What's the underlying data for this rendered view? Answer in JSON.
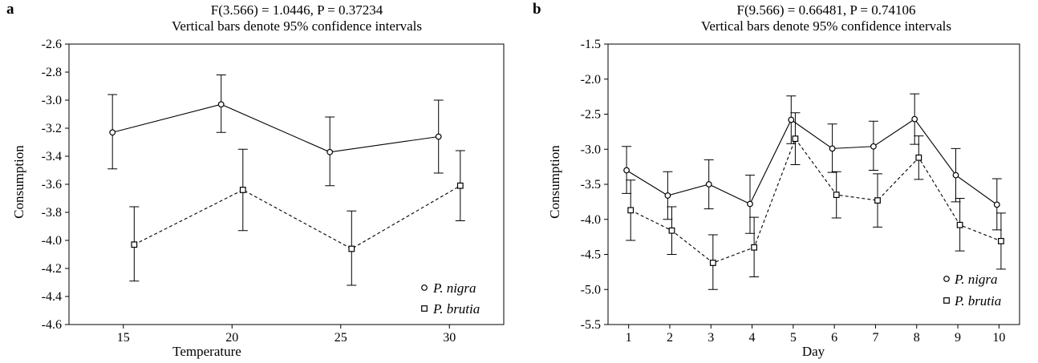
{
  "chart_data": [
    {
      "type": "line",
      "panel_label": "a",
      "title": "F(3.566) = 1.0446,   P = 0.37234",
      "subtitle": "Vertical bars denote 95% confidence intervals",
      "xlabel": "Temperature",
      "ylabel": "Consumption",
      "x_ticks": [
        "15",
        "20",
        "25",
        "30"
      ],
      "xlim": [
        12.5,
        32.5
      ],
      "y_ticks": [
        "-2.6",
        "-2.8",
        "-3.0",
        "-3.2",
        "-3.4",
        "-3.6",
        "-3.8",
        "-4.0",
        "-4.2",
        "-4.4",
        "-4.6"
      ],
      "ylim": [
        -4.6,
        -2.6
      ],
      "grid": false,
      "legend_position": "bottom-right",
      "series": [
        {
          "name": "P. nigra",
          "marker": "circle",
          "line": "solid",
          "x": [
            14.5,
            19.5,
            24.5,
            29.5
          ],
          "values": [
            -3.23,
            -3.03,
            -3.37,
            -3.26
          ],
          "ci_upper": [
            -2.96,
            -2.82,
            -3.12,
            -3.0
          ],
          "ci_lower": [
            -3.49,
            -3.23,
            -3.61,
            -3.52
          ]
        },
        {
          "name": "P. brutia",
          "marker": "square",
          "line": "dashed",
          "x": [
            15.5,
            20.5,
            25.5,
            30.5
          ],
          "values": [
            -4.03,
            -3.64,
            -4.06,
            -3.61
          ],
          "ci_upper": [
            -3.76,
            -3.35,
            -3.79,
            -3.36
          ],
          "ci_lower": [
            -4.29,
            -3.93,
            -4.32,
            -3.86
          ]
        }
      ]
    },
    {
      "type": "line",
      "panel_label": "b",
      "title": "F(9.566) = 0.66481, P = 0.74106",
      "subtitle": "Vertical bars denote 95% confidence intervals",
      "xlabel": "Day",
      "ylabel": "Consumption",
      "x_ticks": [
        "1",
        "2",
        "3",
        "4",
        "5",
        "6",
        "7",
        "8",
        "9",
        "10"
      ],
      "xlim": [
        0.5,
        10.5
      ],
      "y_ticks": [
        "-1.5",
        "-2.0",
        "-2.5",
        "-3.0",
        "-3.5",
        "-4.0",
        "-4.5",
        "-5.0",
        "-5.5"
      ],
      "ylim": [
        -5.5,
        -1.5
      ],
      "grid": false,
      "legend_position": "bottom-right",
      "series": [
        {
          "name": "P. nigra",
          "marker": "circle",
          "line": "solid",
          "x": [
            0.95,
            1.95,
            2.95,
            3.95,
            4.95,
            5.95,
            6.95,
            7.95,
            8.95,
            9.95
          ],
          "values": [
            -3.3,
            -3.66,
            -3.5,
            -3.78,
            -2.58,
            -2.99,
            -2.96,
            -2.57,
            -3.37,
            -3.79
          ],
          "ci_upper": [
            -2.96,
            -3.32,
            -3.15,
            -3.37,
            -2.24,
            -2.64,
            -2.6,
            -2.21,
            -2.99,
            -3.42
          ],
          "ci_lower": [
            -3.63,
            -4.0,
            -3.85,
            -4.2,
            -2.92,
            -3.33,
            -3.3,
            -2.93,
            -3.75,
            -4.15
          ]
        },
        {
          "name": "P. brutia",
          "marker": "square",
          "line": "dashed",
          "x": [
            1.05,
            2.05,
            3.05,
            4.05,
            5.05,
            6.05,
            7.05,
            8.05,
            9.05,
            10.05
          ],
          "values": [
            -3.87,
            -4.16,
            -4.62,
            -4.4,
            -2.85,
            -3.65,
            -3.73,
            -3.12,
            -4.08,
            -4.31
          ],
          "ci_upper": [
            -3.44,
            -3.82,
            -4.22,
            -3.97,
            -2.48,
            -3.32,
            -3.35,
            -2.81,
            -3.7,
            -3.91
          ],
          "ci_lower": [
            -4.3,
            -4.5,
            -5.0,
            -4.82,
            -3.22,
            -3.98,
            -4.11,
            -3.43,
            -4.45,
            -4.71
          ]
        }
      ]
    }
  ]
}
